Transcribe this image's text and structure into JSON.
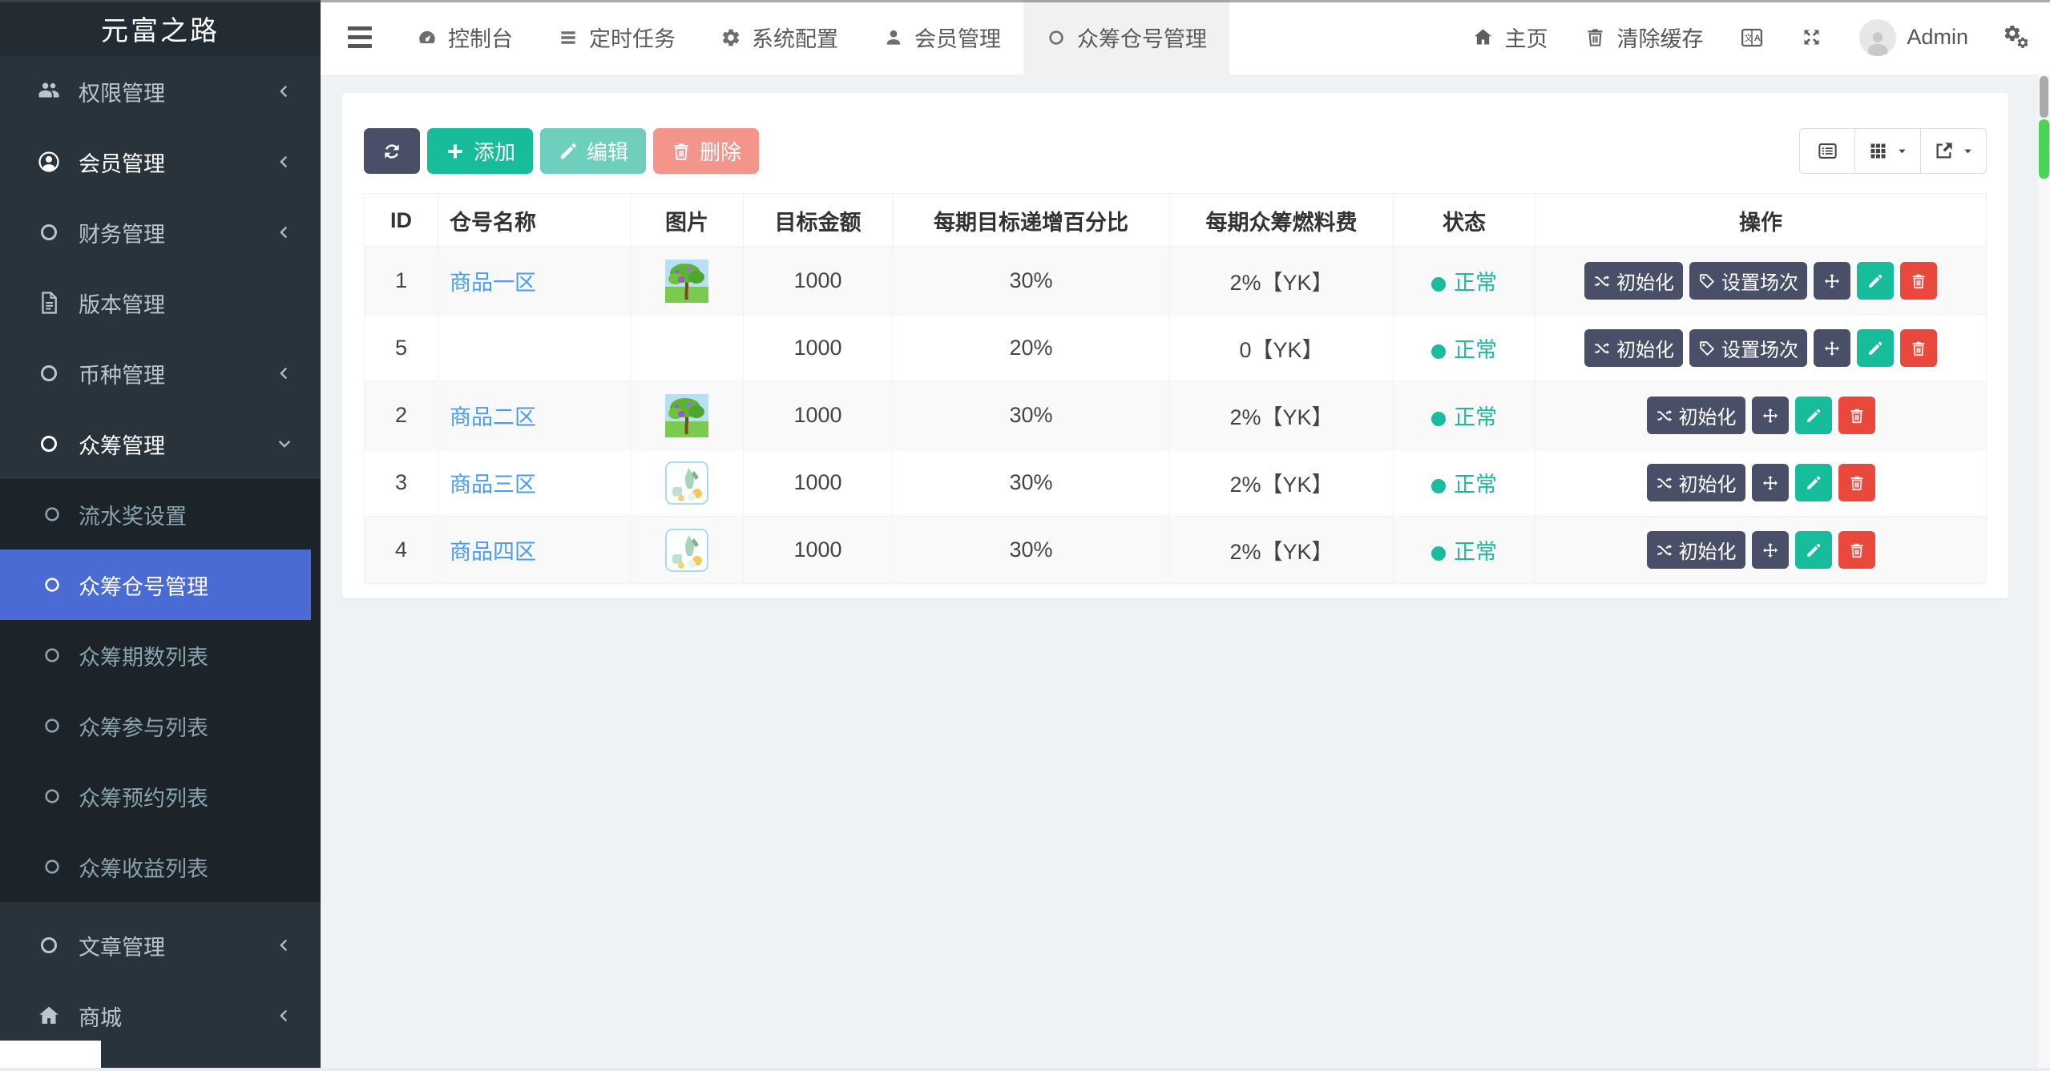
{
  "sidebar": {
    "logo": "元富之路",
    "items": [
      {
        "label": "权限管理"
      },
      {
        "label": "会员管理"
      },
      {
        "label": "财务管理"
      },
      {
        "label": "版本管理"
      },
      {
        "label": "币种管理"
      },
      {
        "label": "众筹管理"
      }
    ],
    "submenu": [
      {
        "label": "流水奖设置"
      },
      {
        "label": "众筹仓号管理",
        "active": true
      },
      {
        "label": "众筹期数列表"
      },
      {
        "label": "众筹参与列表"
      },
      {
        "label": "众筹预约列表"
      },
      {
        "label": "众筹收益列表"
      }
    ],
    "items_after": [
      {
        "label": "文章管理"
      },
      {
        "label": "商城"
      }
    ]
  },
  "topnav": {
    "tabs": [
      {
        "label": "控制台"
      },
      {
        "label": "定时任务"
      },
      {
        "label": "系统配置"
      },
      {
        "label": "会员管理"
      },
      {
        "label": "众筹仓号管理",
        "active": true
      }
    ],
    "home_label": "主页",
    "clear_cache_label": "清除缓存",
    "admin_label": "Admin"
  },
  "toolbar": {
    "add_label": "添加",
    "edit_label": "编辑",
    "delete_label": "删除"
  },
  "table": {
    "columns": [
      "ID",
      "仓号名称",
      "图片",
      "目标金额",
      "每期目标递增百分比",
      "每期众筹燃料费",
      "状态",
      "操作"
    ],
    "action_labels": {
      "init": "初始化",
      "session": "设置场次"
    },
    "status_normal": "正常",
    "rows": [
      {
        "id": "1",
        "name": "商品一区",
        "image": "tree",
        "amount": "1000",
        "percent": "30%",
        "fee": "2%【YK】",
        "status": "正常",
        "actions": [
          "init",
          "session",
          "move",
          "edit",
          "delete"
        ]
      },
      {
        "id": "5",
        "name": "",
        "image": null,
        "amount": "1000",
        "percent": "20%",
        "fee": "0【YK】",
        "status": "正常",
        "actions": [
          "init",
          "session",
          "move",
          "edit",
          "delete"
        ]
      },
      {
        "id": "2",
        "name": "商品二区",
        "image": "tree",
        "amount": "1000",
        "percent": "30%",
        "fee": "2%【YK】",
        "status": "正常",
        "actions": [
          "init",
          "move",
          "edit",
          "delete"
        ]
      },
      {
        "id": "3",
        "name": "商品三区",
        "image": "bottle",
        "amount": "1000",
        "percent": "30%",
        "fee": "2%【YK】",
        "status": "正常",
        "actions": [
          "init",
          "move",
          "edit",
          "delete"
        ]
      },
      {
        "id": "4",
        "name": "商品四区",
        "image": "bottle",
        "amount": "1000",
        "percent": "30%",
        "fee": "2%【YK】",
        "status": "正常",
        "actions": [
          "init",
          "move",
          "edit",
          "delete"
        ]
      }
    ]
  },
  "colors": {
    "sidebar_bg": "#28333b",
    "submenu_bg": "#1c2429",
    "active_item": "#4a6bd4",
    "primary_green": "#17bc9b",
    "danger_red": "#e9493c",
    "dark_button": "#484f67",
    "link_blue": "#4a9bf5",
    "status_green": "#1abc9c",
    "scrollbar_green": "#49d455"
  }
}
